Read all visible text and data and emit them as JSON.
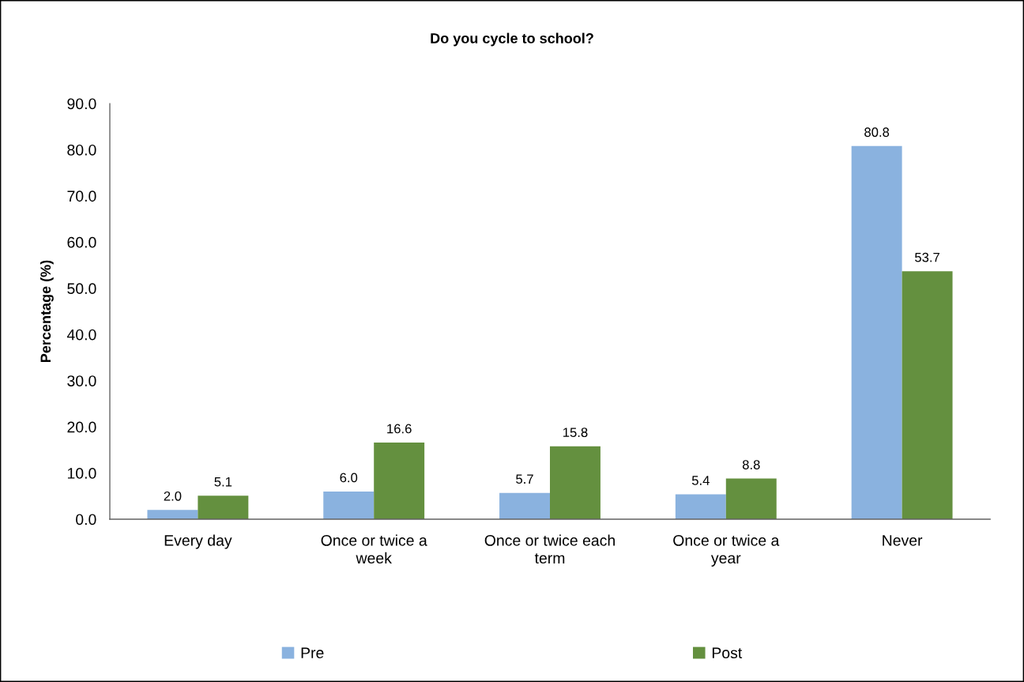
{
  "chart_data": {
    "type": "bar",
    "title": "Do you cycle to school?",
    "ylabel": "Percentage (%)",
    "categories": [
      "Every day",
      "Once or twice a week",
      "Once or twice each term",
      "Once or twice a year",
      "Never"
    ],
    "series": [
      {
        "name": "Pre",
        "color": "#8ab2df",
        "values": [
          2.0,
          6.0,
          5.7,
          5.4,
          80.8
        ],
        "value_labels": [
          "2.0",
          "6.0",
          "5.7",
          "5.4",
          "80.8"
        ]
      },
      {
        "name": "Post",
        "color": "#64903f",
        "values": [
          5.1,
          16.6,
          15.8,
          8.8,
          53.7
        ],
        "value_labels": [
          "5.1",
          "16.6",
          "15.8",
          "8.8",
          "53.7"
        ]
      }
    ],
    "ylim": [
      0,
      90
    ],
    "yticks": [
      {
        "value": 0,
        "label": "0.0"
      },
      {
        "value": 10,
        "label": "10.0"
      },
      {
        "value": 20,
        "label": "20.0"
      },
      {
        "value": 30,
        "label": "30.0"
      },
      {
        "value": 40,
        "label": "40.0"
      },
      {
        "value": 50,
        "label": "50.0"
      },
      {
        "value": 60,
        "label": "60.0"
      },
      {
        "value": 70,
        "label": "70.0"
      },
      {
        "value": 80,
        "label": "80.0"
      },
      {
        "value": 90,
        "label": "90.0"
      }
    ],
    "grid": false,
    "legend": "bottom"
  }
}
